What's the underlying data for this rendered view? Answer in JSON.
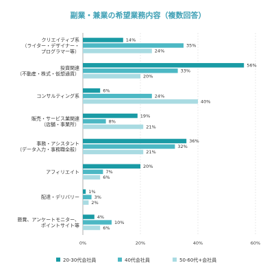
{
  "chart_data": {
    "type": "bar",
    "orientation": "horizontal",
    "title": "副業・兼業の希望業務内容（複数回答）",
    "categories": [
      [
        "クリエイティブ系",
        "（ライター・デザイナー・",
        "プログラマー等）"
      ],
      [
        "投資関連",
        "（不動産・株式・仮想通貨）"
      ],
      [
        "コンサルティング系"
      ],
      [
        "販売・サービス業関連",
        "（店舗・事業所）"
      ],
      [
        "事務・アシスタント",
        "（データ入力・事務職全般）"
      ],
      [
        "アフィリエイト"
      ],
      [
        "配達・デリバリー"
      ],
      [
        "懸賞、アンケートモニター、",
        "ポイントサイト等"
      ]
    ],
    "series": [
      {
        "name": "20-30代会社員",
        "color": "#1a9ba5",
        "values": [
          14,
          56,
          6,
          19,
          36,
          20,
          1,
          4
        ]
      },
      {
        "name": "40代会社員",
        "color": "#4cb8c4",
        "values": [
          35,
          33,
          24,
          8,
          32,
          7,
          3,
          10
        ]
      },
      {
        "name": "50-60代+会社員",
        "color": "#a9dbe2",
        "values": [
          24,
          20,
          40,
          21,
          21,
          6,
          2,
          6
        ]
      }
    ],
    "xlim": [
      0,
      60
    ],
    "xticks": [
      "0%",
      "20%",
      "40%",
      "60%"
    ],
    "grid": true,
    "legend_position": "bottom"
  }
}
